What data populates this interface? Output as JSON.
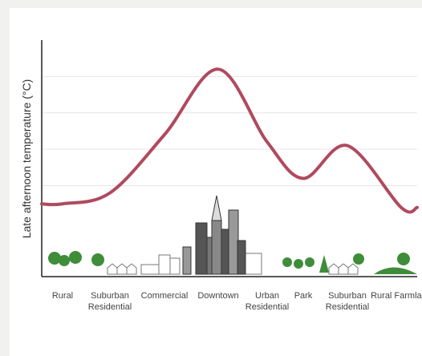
{
  "chart_data": {
    "type": "line",
    "y_label": "Late afternoon temperature (°C)",
    "categories": [
      "Rural",
      "Suburban Residential",
      "Commercial",
      "Downtown",
      "Urban Residential",
      "Park",
      "Suburban Residential",
      "Rural Farmland"
    ],
    "series": [
      {
        "name": "Late afternoon temperature",
        "color": "#b04a5e",
        "values": [
          2.0,
          2.3,
          3.9,
          5.7,
          3.7,
          2.7,
          3.6,
          1.9
        ]
      }
    ],
    "ylim": [
      0,
      6.5
    ],
    "yticks": [
      2.5,
      3.5,
      4.5,
      5.5
    ],
    "grid": true
  }
}
